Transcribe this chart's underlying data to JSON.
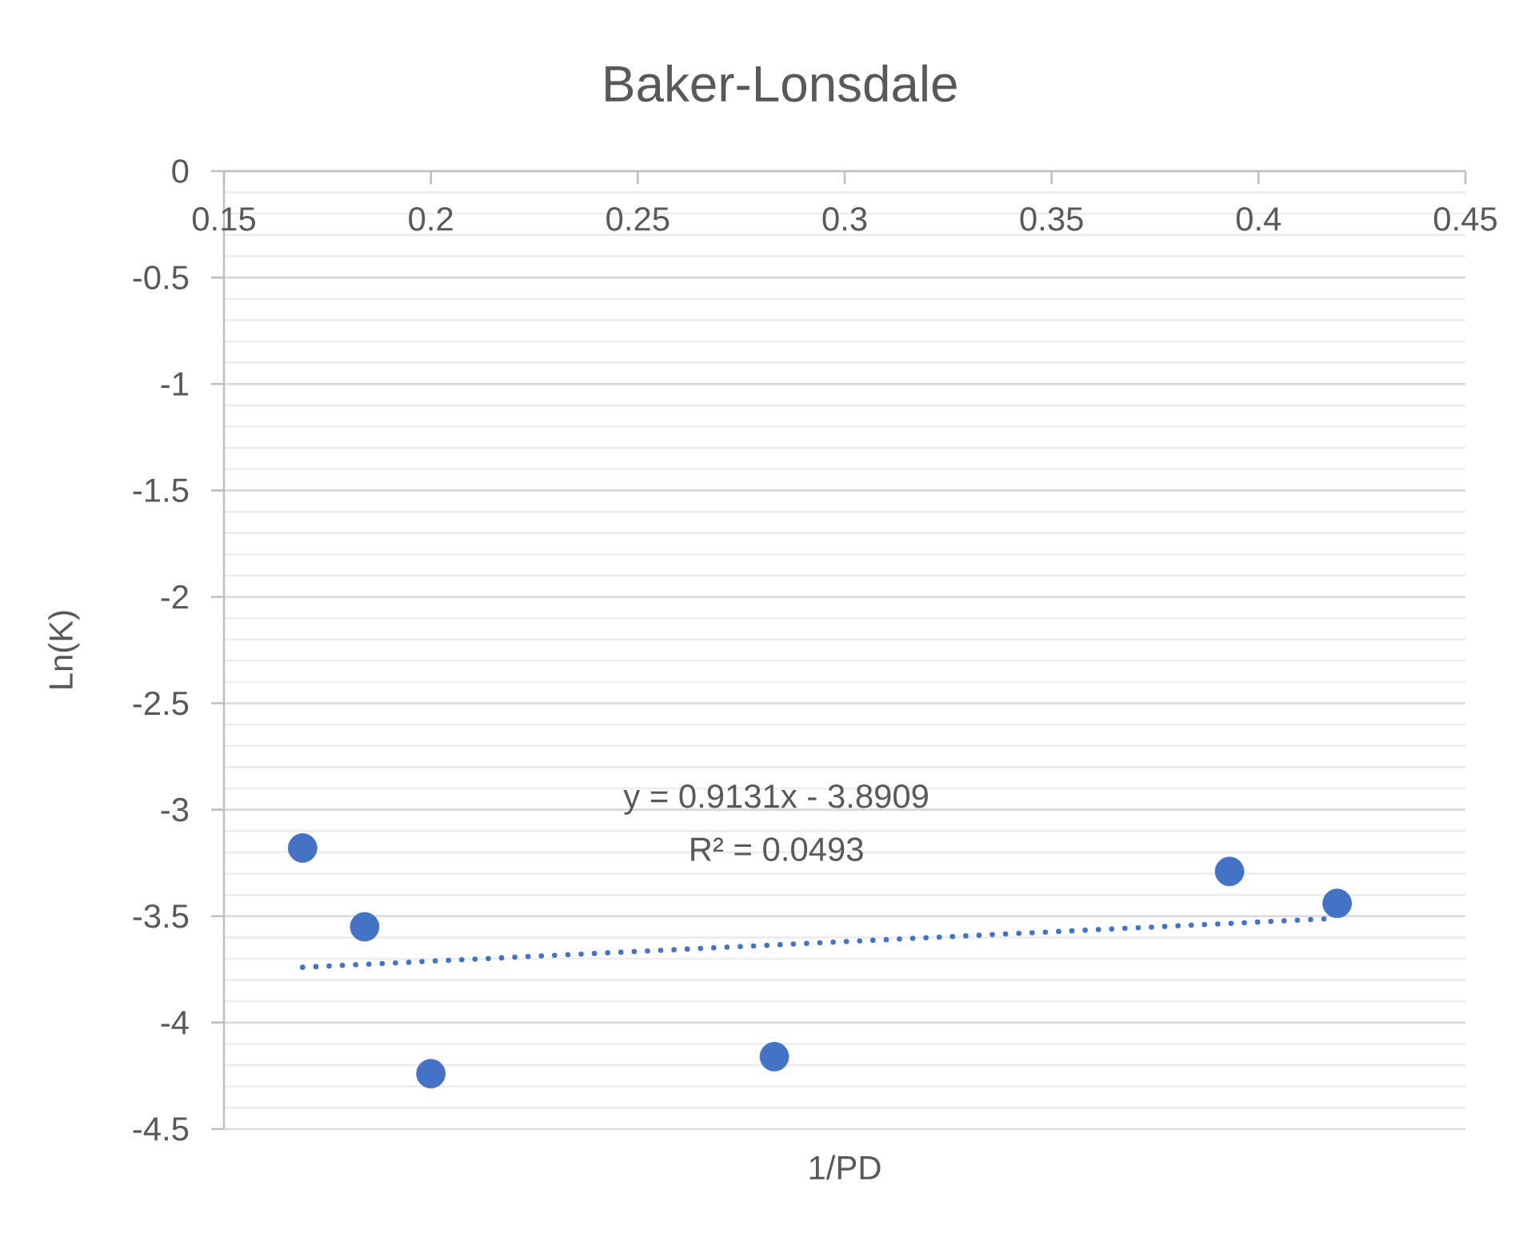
{
  "chart_data": {
    "type": "scatter",
    "title": "Baker-Lonsdale",
    "xlabel": "1/PD",
    "ylabel": "Ln(K)",
    "x": [
      0.169,
      0.184,
      0.2,
      0.283,
      0.393,
      0.419
    ],
    "series": [
      {
        "color": "#4472c4",
        "values": [
          -3.18,
          -3.55,
          -4.24,
          -4.16,
          -3.29,
          -3.44
        ]
      },
      {
        "type": "line",
        "x": [
          0.169,
          0.419
        ],
        "values": [
          -3.74,
          -3.51
        ],
        "color": "#4472c4",
        "line_style": "dotted",
        "marker": "none"
      }
    ],
    "marker": "circle",
    "xlim": [
      0.15,
      0.45
    ],
    "xticks": [
      0.15,
      0.2,
      0.25,
      0.3,
      0.35,
      0.4,
      0.45
    ],
    "ylim": [
      -4.5,
      0
    ],
    "yticks": [
      -4.5,
      -4,
      -3.5,
      -3,
      -2.5,
      -2,
      -1.5,
      -1,
      -0.5,
      0
    ],
    "grid": "y",
    "annotations": [
      "y = 0.9131x - 3.8909",
      "R² = 0.0493"
    ]
  }
}
